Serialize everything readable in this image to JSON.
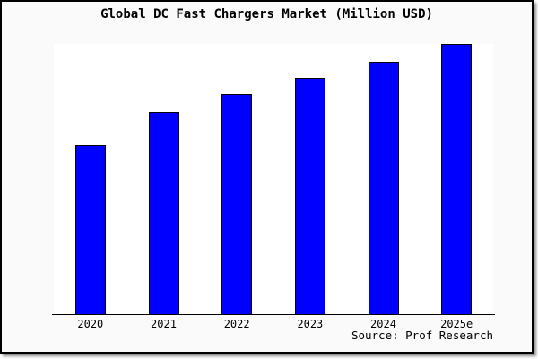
{
  "colors": {
    "bar_fill": "#0000ff",
    "bar_border": "#000000",
    "plot_background": "#ffffff",
    "card_background": "#fafafa",
    "axis_line": "#000000",
    "text": "#000000"
  },
  "chart_data": {
    "type": "bar",
    "title": "Global DC Fast Chargers Market (Million USD)",
    "categories": [
      "2020",
      "2021",
      "2022",
      "2023",
      "2024",
      "2025e"
    ],
    "values": [
      188,
      225,
      245,
      263,
      281,
      301
    ],
    "value_note": "y-axis has no tick labels or gridlines; values are relative bar heights read from pixels",
    "xlabel": "",
    "ylabel": "",
    "ylim": [
      0,
      301
    ],
    "grid": false,
    "legend_position": "none",
    "source_caption": "Source: Prof Research"
  }
}
